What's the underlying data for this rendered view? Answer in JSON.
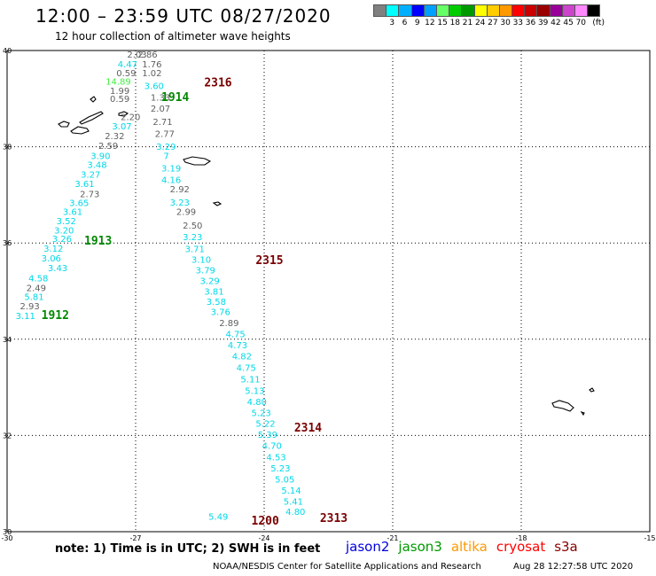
{
  "header": {
    "title": "12:00 – 23:59 UTC 08/27/2020",
    "subtitle": "12 hour collection of altimeter wave heights"
  },
  "legend": {
    "unit": "(ft)",
    "colors": [
      "#808080",
      "#00ffff",
      "#00b0ff",
      "#0000ff",
      "#00a0ff",
      "#66ff66",
      "#00cc00",
      "#009900",
      "#ffff00",
      "#ffcc00",
      "#ff9900",
      "#ff0000",
      "#cc0000",
      "#990000",
      "#990099",
      "#cc44cc",
      "#ff88ff",
      "#000000"
    ],
    "labels": [
      "3",
      "6",
      "9",
      "12",
      "15",
      "18",
      "21",
      "24",
      "27",
      "30",
      "33",
      "36",
      "39",
      "42",
      "45",
      "70"
    ]
  },
  "axes": {
    "x_ticks": [
      "-30",
      "-27",
      "-24",
      "-21",
      "-18",
      "-15"
    ],
    "y_ticks": [
      "40",
      "38",
      "36",
      "34",
      "32",
      "30"
    ]
  },
  "colors": {
    "cyan": "#00d8e8",
    "gray": "#606060",
    "light_green": "#44ee44",
    "dark_green": "#008800",
    "dark_red": "#7a0000",
    "jason2": "#0000dd",
    "jason3": "#009900",
    "altika": "#ff9900",
    "cryosat": "#ff0000",
    "s3a": "#880000"
  },
  "swh_values": [
    {
      "lon": -27.2,
      "lat": 39.85,
      "text": "2.03",
      "c": "gray"
    },
    {
      "lon": -26.95,
      "lat": 39.85,
      "text": "2.86",
      "c": "gray"
    },
    {
      "lon": -27.42,
      "lat": 39.65,
      "text": "4.47",
      "c": "cyan"
    },
    {
      "lon": -26.85,
      "lat": 39.65,
      "text": "1.76",
      "c": "gray"
    },
    {
      "lon": -27.45,
      "lat": 39.47,
      "text": "0.59",
      "c": "gray"
    },
    {
      "lon": -26.85,
      "lat": 39.47,
      "text": "1.02",
      "c": "gray"
    },
    {
      "lon": -27.7,
      "lat": 39.29,
      "text": "14.89",
      "c": "light_green"
    },
    {
      "lon": -27.6,
      "lat": 39.1,
      "text": "1.99",
      "c": "gray"
    },
    {
      "lon": -26.8,
      "lat": 39.2,
      "text": "3.60",
      "c": "cyan"
    },
    {
      "lon": -26.65,
      "lat": 38.96,
      "text": "1.33",
      "c": "gray"
    },
    {
      "lon": -27.6,
      "lat": 38.93,
      "text": "0.59",
      "c": "gray"
    },
    {
      "lon": -26.65,
      "lat": 38.73,
      "text": "2.07",
      "c": "gray"
    },
    {
      "lon": -27.35,
      "lat": 38.55,
      "text": "2.20",
      "c": "gray"
    },
    {
      "lon": -26.6,
      "lat": 38.45,
      "text": "2.71",
      "c": "gray"
    },
    {
      "lon": -27.55,
      "lat": 38.36,
      "text": "3.07",
      "c": "cyan"
    },
    {
      "lon": -26.55,
      "lat": 38.2,
      "text": "2.77",
      "c": "gray"
    },
    {
      "lon": -27.72,
      "lat": 38.16,
      "text": "2.32",
      "c": "gray"
    },
    {
      "lon": -26.52,
      "lat": 37.94,
      "text": "3.29",
      "c": "cyan"
    },
    {
      "lon": -27.87,
      "lat": 37.96,
      "text": "2.59",
      "c": "gray"
    },
    {
      "lon": -26.35,
      "lat": 37.74,
      "text": "7",
      "c": "cyan"
    },
    {
      "lon": -28.05,
      "lat": 37.74,
      "text": "3.90",
      "c": "cyan"
    },
    {
      "lon": -28.13,
      "lat": 37.56,
      "text": "3.48",
      "c": "cyan"
    },
    {
      "lon": -26.4,
      "lat": 37.49,
      "text": "3.19",
      "c": "cyan"
    },
    {
      "lon": -28.28,
      "lat": 37.36,
      "text": "3.27",
      "c": "cyan"
    },
    {
      "lon": -26.4,
      "lat": 37.25,
      "text": "4.16",
      "c": "cyan"
    },
    {
      "lon": -28.42,
      "lat": 37.16,
      "text": "3.61",
      "c": "cyan"
    },
    {
      "lon": -28.3,
      "lat": 36.95,
      "text": "2.73",
      "c": "gray"
    },
    {
      "lon": -26.2,
      "lat": 37.05,
      "text": "2.92",
      "c": "gray"
    },
    {
      "lon": -28.55,
      "lat": 36.77,
      "text": "3.65",
      "c": "cyan"
    },
    {
      "lon": -26.2,
      "lat": 36.78,
      "text": "3.23",
      "c": "cyan"
    },
    {
      "lon": -28.7,
      "lat": 36.58,
      "text": "3.61",
      "c": "cyan"
    },
    {
      "lon": -26.05,
      "lat": 36.58,
      "text": "2.99",
      "c": "gray"
    },
    {
      "lon": -28.85,
      "lat": 36.39,
      "text": "3.52",
      "c": "cyan"
    },
    {
      "lon": -28.9,
      "lat": 36.2,
      "text": "3.20",
      "c": "cyan"
    },
    {
      "lon": -25.9,
      "lat": 36.3,
      "text": "2.50",
      "c": "gray"
    },
    {
      "lon": -28.95,
      "lat": 36.02,
      "text": "3.26",
      "c": "cyan"
    },
    {
      "lon": -25.9,
      "lat": 36.06,
      "text": "3.23",
      "c": "cyan"
    },
    {
      "lon": -29.15,
      "lat": 35.82,
      "text": "3.12",
      "c": "cyan"
    },
    {
      "lon": -25.85,
      "lat": 35.81,
      "text": "3.71",
      "c": "cyan"
    },
    {
      "lon": -29.2,
      "lat": 35.62,
      "text": "3.06",
      "c": "cyan"
    },
    {
      "lon": -25.7,
      "lat": 35.59,
      "text": "3.10",
      "c": "cyan"
    },
    {
      "lon": -29.05,
      "lat": 35.41,
      "text": "3.43",
      "c": "cyan"
    },
    {
      "lon": -25.6,
      "lat": 35.37,
      "text": "3.79",
      "c": "cyan"
    },
    {
      "lon": -29.5,
      "lat": 35.2,
      "text": "4.58",
      "c": "cyan"
    },
    {
      "lon": -25.5,
      "lat": 35.15,
      "text": "3.29",
      "c": "cyan"
    },
    {
      "lon": -29.55,
      "lat": 35.0,
      "text": "2.49",
      "c": "gray"
    },
    {
      "lon": -25.4,
      "lat": 34.93,
      "text": "3.81",
      "c": "cyan"
    },
    {
      "lon": -29.6,
      "lat": 34.82,
      "text": "5.81",
      "c": "cyan"
    },
    {
      "lon": -25.35,
      "lat": 34.71,
      "text": "3.58",
      "c": "cyan"
    },
    {
      "lon": -29.7,
      "lat": 34.62,
      "text": "2.93",
      "c": "gray"
    },
    {
      "lon": -25.25,
      "lat": 34.5,
      "text": "3.76",
      "c": "cyan"
    },
    {
      "lon": -29.8,
      "lat": 34.42,
      "text": "3.11",
      "c": "cyan"
    },
    {
      "lon": -25.05,
      "lat": 34.27,
      "text": "2.89",
      "c": "gray"
    },
    {
      "lon": -24.9,
      "lat": 34.04,
      "text": "4.75",
      "c": "cyan"
    },
    {
      "lon": -24.85,
      "lat": 33.81,
      "text": "4.73",
      "c": "cyan"
    },
    {
      "lon": -24.75,
      "lat": 33.58,
      "text": "4.82",
      "c": "cyan"
    },
    {
      "lon": -24.65,
      "lat": 33.34,
      "text": "4.75",
      "c": "cyan"
    },
    {
      "lon": -24.55,
      "lat": 33.1,
      "text": "5.11",
      "c": "cyan"
    },
    {
      "lon": -24.45,
      "lat": 32.86,
      "text": "5.13",
      "c": "cyan"
    },
    {
      "lon": -24.4,
      "lat": 32.63,
      "text": "4.80",
      "c": "cyan"
    },
    {
      "lon": -24.3,
      "lat": 32.4,
      "text": "5.23",
      "c": "cyan"
    },
    {
      "lon": -24.2,
      "lat": 32.18,
      "text": "5.22",
      "c": "cyan"
    },
    {
      "lon": -24.15,
      "lat": 31.95,
      "text": "5.39",
      "c": "cyan"
    },
    {
      "lon": -24.05,
      "lat": 31.72,
      "text": "4.70",
      "c": "cyan"
    },
    {
      "lon": -23.95,
      "lat": 31.48,
      "text": "4.53",
      "c": "cyan"
    },
    {
      "lon": -23.85,
      "lat": 31.25,
      "text": "5.23",
      "c": "cyan"
    },
    {
      "lon": -23.75,
      "lat": 31.02,
      "text": "5.05",
      "c": "cyan"
    },
    {
      "lon": -23.6,
      "lat": 30.79,
      "text": "5.14",
      "c": "cyan"
    },
    {
      "lon": -23.55,
      "lat": 30.56,
      "text": "5.41",
      "c": "cyan"
    },
    {
      "lon": -23.5,
      "lat": 30.35,
      "text": "4.80",
      "c": "cyan"
    },
    {
      "lon": -25.3,
      "lat": 30.25,
      "text": "5.49",
      "c": "cyan"
    }
  ],
  "pass_labels": [
    {
      "lon": -25.4,
      "lat": 39.25,
      "text": "2316",
      "c": "dark_red"
    },
    {
      "lon": -26.4,
      "lat": 38.95,
      "text": "1914",
      "c": "dark_green"
    },
    {
      "lon": -28.2,
      "lat": 35.97,
      "text": "1913",
      "c": "dark_green"
    },
    {
      "lon": -29.2,
      "lat": 34.42,
      "text": "1912",
      "c": "dark_green"
    },
    {
      "lon": -24.2,
      "lat": 35.56,
      "text": "2315",
      "c": "dark_red"
    },
    {
      "lon": -23.3,
      "lat": 32.08,
      "text": "2314",
      "c": "dark_red"
    },
    {
      "lon": -22.7,
      "lat": 30.2,
      "text": "2313",
      "c": "dark_red"
    },
    {
      "lon": -24.3,
      "lat": 30.15,
      "text": "1200",
      "c": "dark_red"
    }
  ],
  "footer": {
    "note": "note: 1) Time is in UTC; 2) SWH is in feet",
    "missions": [
      "jason2",
      "jason3",
      "altika",
      "cryosat",
      "s3a"
    ],
    "credit": "NOAA/NESDIS Center for Satellite Applications and Research",
    "timestamp": "Aug 28 12:27:58 UTC 2020"
  }
}
